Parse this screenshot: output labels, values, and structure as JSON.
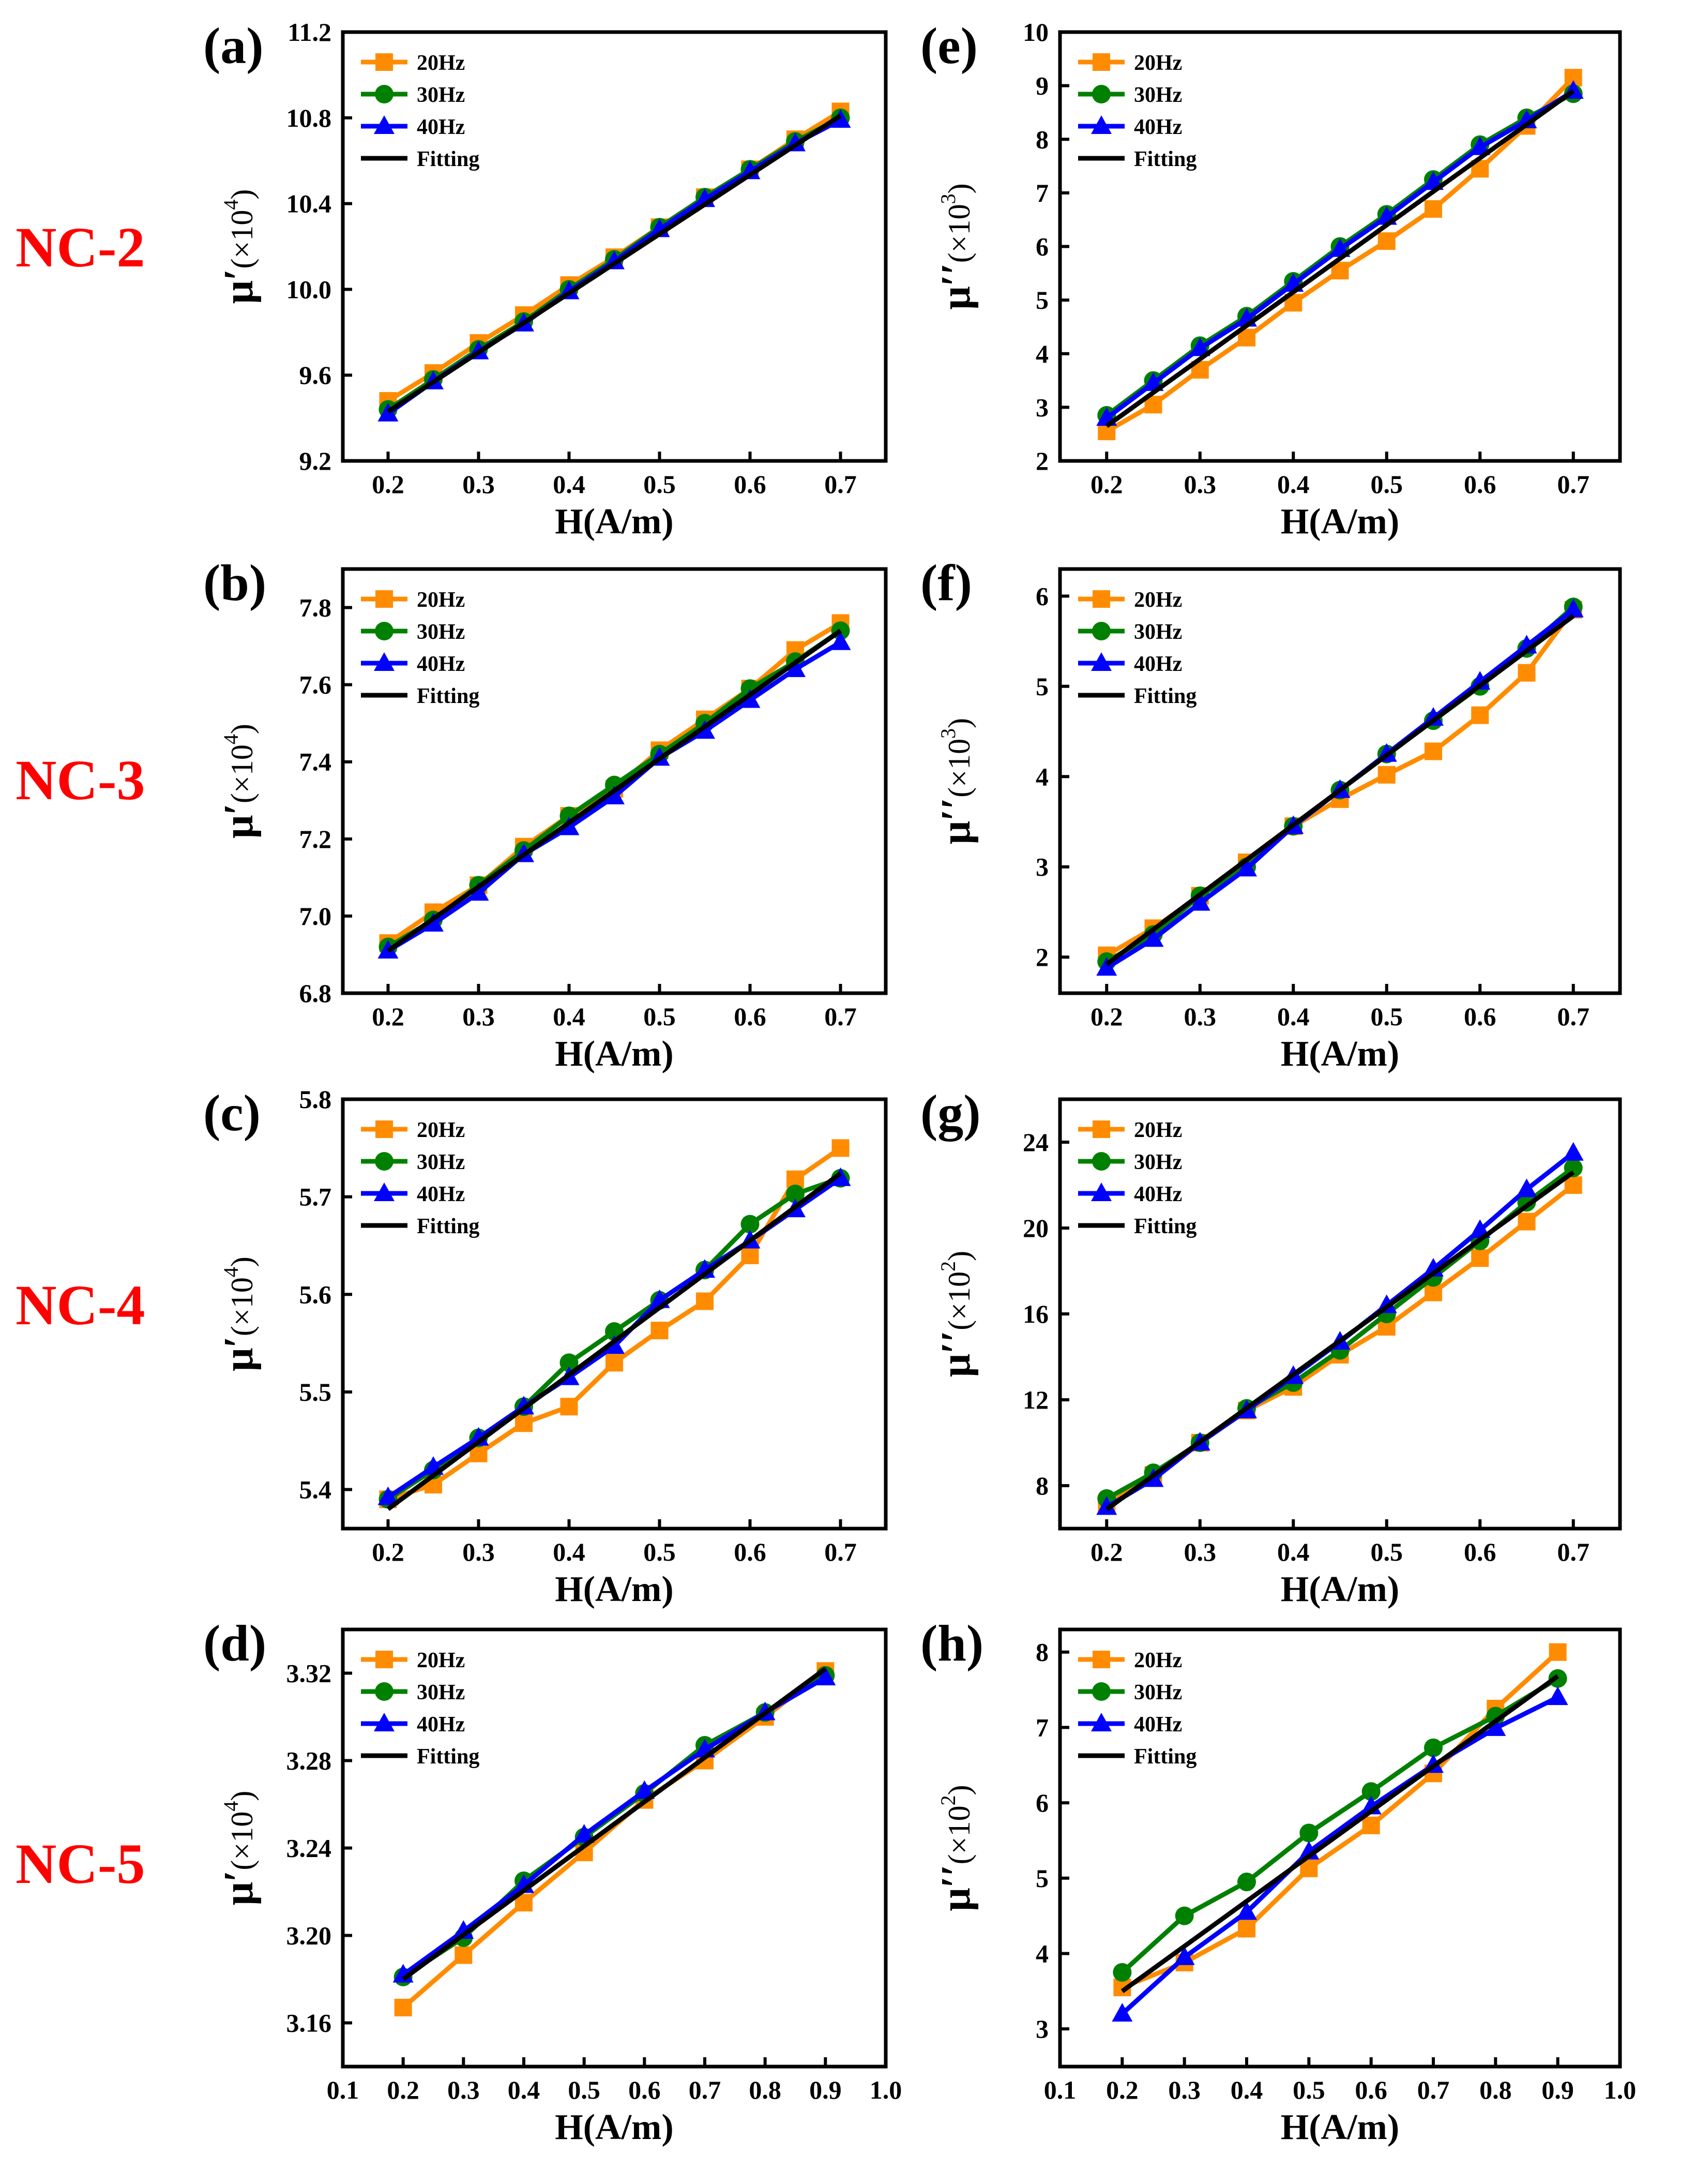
{
  "colors": {
    "s20": "#ff8c00",
    "s30": "#008000",
    "s40": "#0000ff",
    "fit": "#000000",
    "row_label": "#ff0000"
  },
  "rows": [
    {
      "label": "NC-2"
    },
    {
      "label": "NC-3"
    },
    {
      "label": "NC-4"
    },
    {
      "label": "NC-5"
    }
  ],
  "chart_data": [
    {
      "id": "a",
      "letter": "(a)",
      "type": "line",
      "row": 0,
      "col": 0,
      "xlabel": "H(A/m)",
      "ylabel_main": "μ′",
      "ylabel_scale": "(×10",
      "ylabel_exp": "4",
      "ylabel_close": ")",
      "xlim": [
        0.15,
        0.75
      ],
      "ylim": [
        9.2,
        11.2
      ],
      "xticks": [
        0.2,
        0.3,
        0.4,
        0.5,
        0.6,
        0.7
      ],
      "yticks": [
        9.2,
        9.6,
        10.0,
        10.4,
        10.8,
        11.2
      ],
      "xtick_labels": [
        "0.2",
        "0.3",
        "0.4",
        "0.5",
        "0.6",
        "0.7"
      ],
      "ytick_labels": [
        "9.2",
        "9.6",
        "10.0",
        "10.4",
        "10.8",
        "11.2"
      ],
      "x": [
        0.2,
        0.25,
        0.3,
        0.35,
        0.4,
        0.45,
        0.5,
        0.55,
        0.6,
        0.65,
        0.7
      ],
      "series": [
        {
          "name": "20Hz",
          "values": [
            9.48,
            9.61,
            9.75,
            9.88,
            10.02,
            10.15,
            10.29,
            10.43,
            10.56,
            10.7,
            10.83
          ]
        },
        {
          "name": "30Hz",
          "values": [
            9.44,
            9.58,
            9.72,
            9.85,
            10.0,
            10.14,
            10.29,
            10.43,
            10.56,
            10.69,
            10.8
          ]
        },
        {
          "name": "40Hz",
          "values": [
            9.42,
            9.57,
            9.71,
            9.84,
            9.99,
            10.13,
            10.28,
            10.42,
            10.55,
            10.68,
            10.79
          ]
        }
      ],
      "fit": {
        "name": "Fitting",
        "x": [
          0.2,
          0.7
        ],
        "y": [
          9.43,
          10.81
        ]
      }
    },
    {
      "id": "e",
      "letter": "(e)",
      "type": "line",
      "row": 0,
      "col": 1,
      "xlabel": "H(A/m)",
      "ylabel_main": "μ′′",
      "ylabel_scale": "(×10",
      "ylabel_exp": "3",
      "ylabel_close": ")",
      "xlim": [
        0.15,
        0.75
      ],
      "ylim": [
        2,
        10
      ],
      "xticks": [
        0.2,
        0.3,
        0.4,
        0.5,
        0.6,
        0.7
      ],
      "yticks": [
        2,
        3,
        4,
        5,
        6,
        7,
        8,
        9,
        10
      ],
      "xtick_labels": [
        "0.2",
        "0.3",
        "0.4",
        "0.5",
        "0.6",
        "0.7"
      ],
      "ytick_labels": [
        "2",
        "3",
        "4",
        "5",
        "6",
        "7",
        "8",
        "9",
        "10"
      ],
      "x": [
        0.2,
        0.25,
        0.3,
        0.35,
        0.4,
        0.45,
        0.5,
        0.55,
        0.6,
        0.65,
        0.7
      ],
      "series": [
        {
          "name": "20Hz",
          "values": [
            2.55,
            3.05,
            3.7,
            4.3,
            4.95,
            5.55,
            6.1,
            6.7,
            7.45,
            8.25,
            9.15
          ]
        },
        {
          "name": "30Hz",
          "values": [
            2.85,
            3.5,
            4.15,
            4.7,
            5.35,
            6.0,
            6.6,
            7.25,
            7.9,
            8.4,
            8.85
          ]
        },
        {
          "name": "40Hz",
          "values": [
            2.8,
            3.45,
            4.1,
            4.65,
            5.3,
            5.95,
            6.55,
            7.2,
            7.85,
            8.35,
            8.9
          ]
        }
      ],
      "fit": {
        "name": "Fitting",
        "x": [
          0.2,
          0.7
        ],
        "y": [
          2.65,
          8.9
        ]
      }
    },
    {
      "id": "b",
      "letter": "(b)",
      "type": "line",
      "row": 1,
      "col": 0,
      "xlabel": "H(A/m)",
      "ylabel_main": "μ′",
      "ylabel_scale": "(×10",
      "ylabel_exp": "4",
      "ylabel_close": ")",
      "xlim": [
        0.15,
        0.75
      ],
      "ylim": [
        6.8,
        7.9
      ],
      "xticks": [
        0.2,
        0.3,
        0.4,
        0.5,
        0.6,
        0.7
      ],
      "yticks": [
        6.8,
        7.0,
        7.2,
        7.4,
        7.6,
        7.8
      ],
      "xtick_labels": [
        "0.2",
        "0.3",
        "0.4",
        "0.5",
        "0.6",
        "0.7"
      ],
      "ytick_labels": [
        "6.8",
        "7.0",
        "7.2",
        "7.4",
        "7.6",
        "7.8"
      ],
      "x": [
        0.2,
        0.25,
        0.3,
        0.35,
        0.4,
        0.45,
        0.5,
        0.55,
        0.6,
        0.65,
        0.7
      ],
      "series": [
        {
          "name": "20Hz",
          "values": [
            6.93,
            7.01,
            7.08,
            7.18,
            7.26,
            7.33,
            7.43,
            7.51,
            7.59,
            7.69,
            7.76
          ]
        },
        {
          "name": "30Hz",
          "values": [
            6.92,
            6.99,
            7.08,
            7.17,
            7.26,
            7.34,
            7.42,
            7.5,
            7.59,
            7.66,
            7.74
          ]
        },
        {
          "name": "40Hz",
          "values": [
            6.91,
            6.98,
            7.06,
            7.16,
            7.23,
            7.31,
            7.41,
            7.48,
            7.56,
            7.64,
            7.71
          ]
        }
      ],
      "fit": {
        "name": "Fitting",
        "x": [
          0.2,
          0.7
        ],
        "y": [
          6.91,
          7.74
        ]
      }
    },
    {
      "id": "f",
      "letter": "(f)",
      "type": "line",
      "row": 1,
      "col": 1,
      "xlabel": "H(A/m)",
      "ylabel_main": "μ′′",
      "ylabel_scale": "(×10",
      "ylabel_exp": "3",
      "ylabel_close": ")",
      "xlim": [
        0.15,
        0.75
      ],
      "ylim": [
        1.6,
        6.3
      ],
      "xticks": [
        0.2,
        0.3,
        0.4,
        0.5,
        0.6,
        0.7
      ],
      "yticks": [
        2,
        3,
        4,
        5,
        6
      ],
      "xtick_labels": [
        "0.2",
        "0.3",
        "0.4",
        "0.5",
        "0.6",
        "0.7"
      ],
      "ytick_labels": [
        "2",
        "3",
        "4",
        "5",
        "6"
      ],
      "x": [
        0.2,
        0.25,
        0.3,
        0.35,
        0.4,
        0.45,
        0.5,
        0.55,
        0.6,
        0.65,
        0.7
      ],
      "series": [
        {
          "name": "20Hz",
          "values": [
            2.02,
            2.32,
            2.68,
            3.05,
            3.45,
            3.75,
            4.02,
            4.28,
            4.68,
            5.15,
            5.85
          ]
        },
        {
          "name": "30Hz",
          "values": [
            1.95,
            2.25,
            2.68,
            3.0,
            3.45,
            3.85,
            4.25,
            4.62,
            5.0,
            5.42,
            5.88
          ]
        },
        {
          "name": "40Hz",
          "values": [
            1.88,
            2.2,
            2.6,
            2.98,
            3.45,
            3.85,
            4.25,
            4.65,
            5.05,
            5.45,
            5.85
          ]
        }
      ],
      "fit": {
        "name": "Fitting",
        "x": [
          0.2,
          0.7
        ],
        "y": [
          1.92,
          5.78
        ]
      }
    },
    {
      "id": "c",
      "letter": "(c)",
      "type": "line",
      "row": 2,
      "col": 0,
      "xlabel": "H(A/m)",
      "ylabel_main": "μ′",
      "ylabel_scale": "(×10",
      "ylabel_exp": "4",
      "ylabel_close": ")",
      "xlim": [
        0.15,
        0.75
      ],
      "ylim": [
        5.36,
        5.8
      ],
      "xticks": [
        0.2,
        0.3,
        0.4,
        0.5,
        0.6,
        0.7
      ],
      "yticks": [
        5.4,
        5.5,
        5.6,
        5.7,
        5.8
      ],
      "xtick_labels": [
        "0.2",
        "0.3",
        "0.4",
        "0.5",
        "0.6",
        "0.7"
      ],
      "ytick_labels": [
        "5.4",
        "5.5",
        "5.6",
        "5.7",
        "5.8"
      ],
      "x": [
        0.2,
        0.25,
        0.3,
        0.35,
        0.4,
        0.45,
        0.5,
        0.55,
        0.6,
        0.65,
        0.7
      ],
      "series": [
        {
          "name": "20Hz",
          "values": [
            5.39,
            5.405,
            5.437,
            5.468,
            5.485,
            5.53,
            5.563,
            5.593,
            5.64,
            5.718,
            5.75
          ]
        },
        {
          "name": "30Hz",
          "values": [
            5.39,
            5.42,
            5.453,
            5.485,
            5.53,
            5.562,
            5.594,
            5.625,
            5.672,
            5.703,
            5.719
          ]
        },
        {
          "name": "40Hz",
          "values": [
            5.392,
            5.423,
            5.453,
            5.485,
            5.515,
            5.547,
            5.594,
            5.625,
            5.655,
            5.687,
            5.719
          ]
        }
      ],
      "fit": {
        "name": "Fitting",
        "x": [
          0.2,
          0.7
        ],
        "y": [
          5.38,
          5.724
        ]
      }
    },
    {
      "id": "g",
      "letter": "(g)",
      "type": "line",
      "row": 2,
      "col": 1,
      "xlabel": "H(A/m)",
      "ylabel_main": "μ′′",
      "ylabel_scale": "(×10",
      "ylabel_exp": "2",
      "ylabel_close": ")",
      "xlim": [
        0.15,
        0.75
      ],
      "ylim": [
        6,
        26
      ],
      "xticks": [
        0.2,
        0.3,
        0.4,
        0.5,
        0.6,
        0.7
      ],
      "yticks": [
        8,
        12,
        16,
        20,
        24
      ],
      "xtick_labels": [
        "0.2",
        "0.3",
        "0.4",
        "0.5",
        "0.6",
        "0.7"
      ],
      "ytick_labels": [
        "8",
        "12",
        "16",
        "20",
        "24"
      ],
      "x": [
        0.2,
        0.25,
        0.3,
        0.35,
        0.4,
        0.45,
        0.5,
        0.55,
        0.6,
        0.65,
        0.7
      ],
      "series": [
        {
          "name": "20Hz",
          "values": [
            7.1,
            8.5,
            10.0,
            11.5,
            12.6,
            14.1,
            15.4,
            17.0,
            18.6,
            20.3,
            22.0
          ]
        },
        {
          "name": "30Hz",
          "values": [
            7.4,
            8.6,
            10.0,
            11.6,
            12.8,
            14.3,
            16.0,
            17.7,
            19.4,
            21.2,
            22.8
          ]
        },
        {
          "name": "40Hz",
          "values": [
            7.0,
            8.3,
            10.0,
            11.5,
            13.1,
            14.7,
            16.4,
            18.1,
            19.9,
            21.8,
            23.5
          ]
        }
      ],
      "fit": {
        "name": "Fitting",
        "x": [
          0.2,
          0.7
        ],
        "y": [
          6.9,
          22.6
        ]
      }
    },
    {
      "id": "d",
      "letter": "(d)",
      "type": "line",
      "row": 3,
      "col": 0,
      "xlabel": "H(A/m)",
      "ylabel_main": "μ′",
      "ylabel_scale": "(×10",
      "ylabel_exp": "4",
      "ylabel_close": ")",
      "xlim": [
        0.1,
        1.0
      ],
      "ylim": [
        3.14,
        3.34
      ],
      "xticks": [
        0.1,
        0.2,
        0.3,
        0.4,
        0.5,
        0.6,
        0.7,
        0.8,
        0.9,
        1.0
      ],
      "yticks": [
        3.16,
        3.2,
        3.24,
        3.28,
        3.32
      ],
      "xtick_labels": [
        "0.1",
        "0.2",
        "0.3",
        "0.4",
        "0.5",
        "0.6",
        "0.7",
        "0.8",
        "0.9",
        "1.0"
      ],
      "ytick_labels": [
        "3.16",
        "3.20",
        "3.24",
        "3.28",
        "3.32"
      ],
      "x": [
        0.2,
        0.3,
        0.4,
        0.5,
        0.6,
        0.7,
        0.8,
        0.9
      ],
      "series": [
        {
          "name": "20Hz",
          "values": [
            3.167,
            3.191,
            3.215,
            3.238,
            3.262,
            3.28,
            3.3,
            3.321
          ]
        },
        {
          "name": "30Hz",
          "values": [
            3.181,
            3.199,
            3.225,
            3.245,
            3.265,
            3.287,
            3.302,
            3.319
          ]
        },
        {
          "name": "40Hz",
          "values": [
            3.182,
            3.202,
            3.223,
            3.246,
            3.266,
            3.285,
            3.302,
            3.318
          ]
        }
      ],
      "fit": {
        "name": "Fitting",
        "x": [
          0.2,
          0.9
        ],
        "y": [
          3.18,
          3.322
        ]
      }
    },
    {
      "id": "h",
      "letter": "(h)",
      "type": "line",
      "row": 3,
      "col": 1,
      "xlabel": "H(A/m)",
      "ylabel_main": "μ′′",
      "ylabel_scale": "(×10",
      "ylabel_exp": "2",
      "ylabel_close": ")",
      "xlim": [
        0.1,
        1.0
      ],
      "ylim": [
        2.5,
        8.3
      ],
      "xticks": [
        0.1,
        0.2,
        0.3,
        0.4,
        0.5,
        0.6,
        0.7,
        0.8,
        0.9,
        1.0
      ],
      "yticks": [
        3,
        4,
        5,
        6,
        7,
        8
      ],
      "xtick_labels": [
        "0.1",
        "0.2",
        "0.3",
        "0.4",
        "0.5",
        "0.6",
        "0.7",
        "0.8",
        "0.9",
        "1.0"
      ],
      "ytick_labels": [
        "3",
        "4",
        "5",
        "6",
        "7",
        "8"
      ],
      "x": [
        0.2,
        0.3,
        0.4,
        0.5,
        0.6,
        0.7,
        0.8,
        0.9
      ],
      "series": [
        {
          "name": "20Hz",
          "values": [
            3.55,
            3.88,
            4.33,
            5.13,
            5.7,
            6.39,
            7.25,
            8.0
          ]
        },
        {
          "name": "30Hz",
          "values": [
            3.75,
            4.5,
            4.95,
            5.6,
            6.15,
            6.73,
            7.15,
            7.65
          ]
        },
        {
          "name": "40Hz",
          "values": [
            3.2,
            3.95,
            4.55,
            5.35,
            5.95,
            6.5,
            6.99,
            7.4
          ]
        }
      ],
      "fit": {
        "name": "Fitting",
        "x": [
          0.2,
          0.9
        ],
        "y": [
          3.5,
          7.68
        ]
      }
    }
  ]
}
